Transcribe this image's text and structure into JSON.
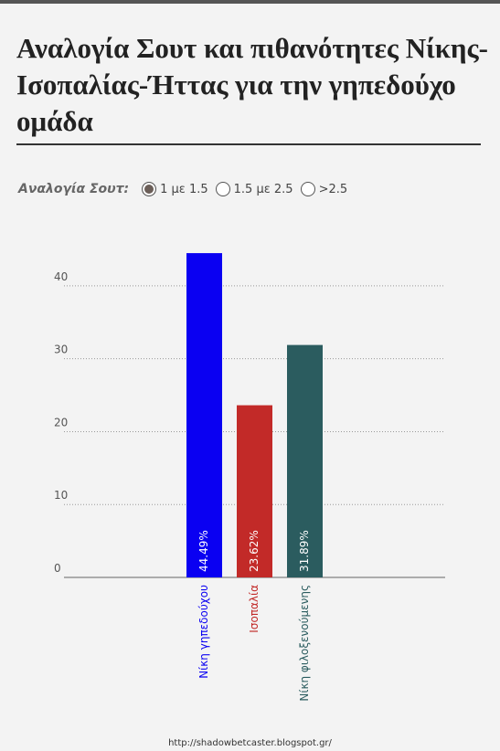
{
  "header": {
    "title": "Αναλογία Σουτ και πιθανότητες Νίκης-Ισοπαλίας-Ήττας για την γηπεδούχο ομάδα"
  },
  "controls": {
    "label": "Αναλογία Σουτ:",
    "options": [
      "1 με 1.5",
      "1.5 με 2.5",
      ">2.5"
    ],
    "selected": 0
  },
  "chart_data": {
    "type": "bar",
    "categories": [
      "Νίκη γηπεδούχου",
      "Ισοπαλία",
      "Νίκη φιλοξενούμενης"
    ],
    "values": [
      44.49,
      23.62,
      31.89
    ],
    "value_labels": [
      "44.49%",
      "23.62%",
      "31.89%"
    ],
    "colors": [
      "#0a00f2",
      "#c22a28",
      "#2b5c5f"
    ],
    "ylim": [
      0,
      45
    ],
    "yticks": [
      0,
      10,
      20,
      30,
      40
    ],
    "grid": true
  },
  "footer": "http://shadowbetcaster.blogspot.gr/"
}
